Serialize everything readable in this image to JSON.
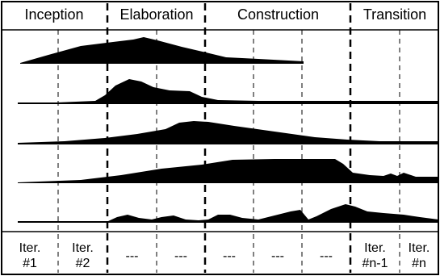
{
  "phases": [
    {
      "name": "Inception"
    },
    {
      "name": "Elaboration"
    },
    {
      "name": "Construction"
    },
    {
      "name": "Transition"
    }
  ],
  "iterations": [
    {
      "top": "Iter.",
      "bottom": "#1"
    },
    {
      "top": "Iter.",
      "bottom": "#2"
    },
    {
      "top": "",
      "bottom": "---"
    },
    {
      "top": "",
      "bottom": "---"
    },
    {
      "top": "",
      "bottom": "---"
    },
    {
      "top": "",
      "bottom": "---"
    },
    {
      "top": "",
      "bottom": "---"
    },
    {
      "top": "Iter.",
      "bottom": "#n-1"
    },
    {
      "top": "Iter.",
      "bottom": "#n"
    }
  ],
  "workflows": [
    {
      "rises": true
    },
    {
      "rises": true
    },
    {
      "rises": true
    },
    {
      "rises": true
    },
    {
      "rises": true
    }
  ]
}
